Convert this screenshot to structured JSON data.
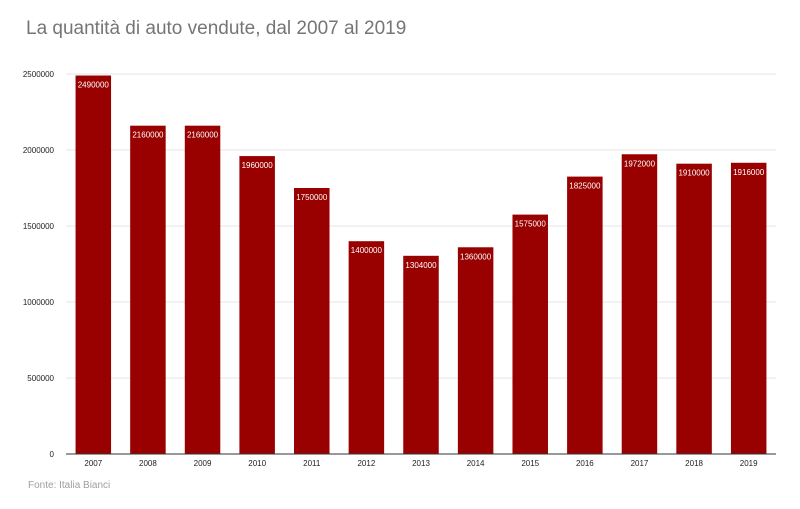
{
  "chart_data": {
    "type": "bar",
    "title": "La quantità di auto vendute, dal 2007 al 2019",
    "xlabel": "",
    "ylabel": "",
    "categories": [
      "2007",
      "2008",
      "2009",
      "2010",
      "2011",
      "2012",
      "2013",
      "2014",
      "2015",
      "2016",
      "2017",
      "2018",
      "2019"
    ],
    "values": [
      2490000,
      2160000,
      2160000,
      1960000,
      1750000,
      1400000,
      1304000,
      1360000,
      1575000,
      1825000,
      1972000,
      1910000,
      1916000
    ],
    "data_labels": [
      "2490000",
      "2160000",
      "2160000",
      "1960000",
      "1750000",
      "1400000",
      "1304000",
      "1360000",
      "1575000",
      "1825000",
      "1972000",
      "1910000",
      "1916000"
    ],
    "ylim": [
      0,
      2500000
    ],
    "yticks": [
      0,
      500000,
      1000000,
      1500000,
      2000000,
      2500000
    ],
    "ytick_labels": [
      "0",
      "500000",
      "1000000",
      "1500000",
      "2000000",
      "2500000"
    ],
    "grid": true,
    "bar_color": "#990000",
    "source": "Fonte: Italia Bianci"
  }
}
